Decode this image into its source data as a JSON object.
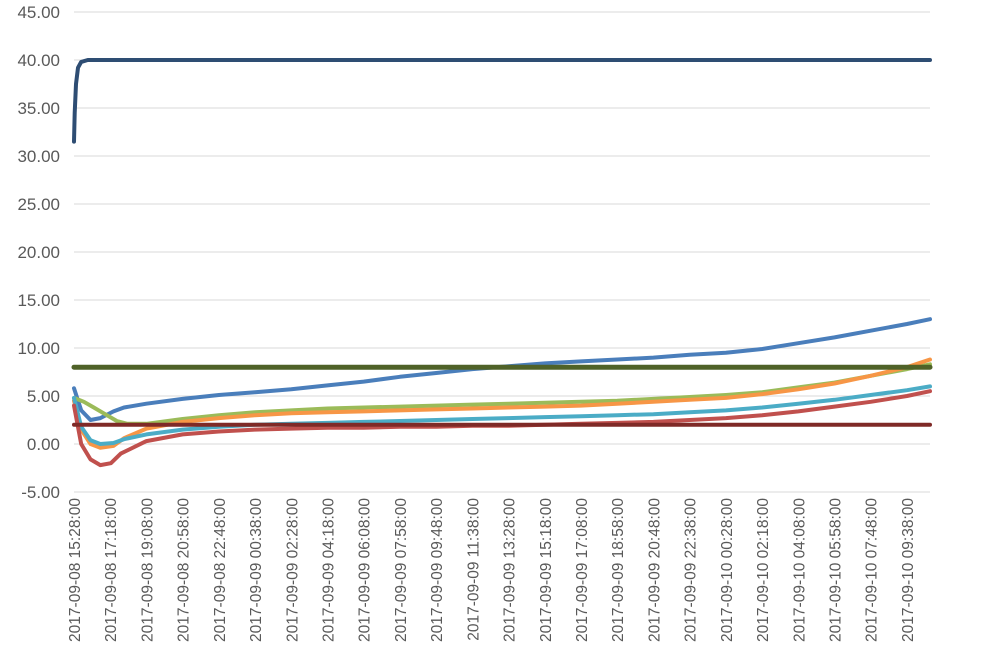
{
  "chart_data": {
    "type": "line",
    "title": "",
    "xlabel": "",
    "ylabel": "",
    "ylim": [
      -5,
      45
    ],
    "yticks": [
      "-5.00",
      "0.00",
      "5.00",
      "10.00",
      "15.00",
      "20.00",
      "25.00",
      "30.00",
      "35.00",
      "40.00",
      "45.00"
    ],
    "grid": true,
    "legend": "none",
    "x_format": "YYYY-MM-DD HH:MM",
    "x_range": [
      "2017-09-08 15:28:00",
      "2017-09-10 10:48:00"
    ],
    "x_ticks": [
      "2017-09-08 15:28:00",
      "2017-09-08 17:18:00",
      "2017-09-08 19:08:00",
      "2017-09-08 20:58:00",
      "2017-09-08 22:48:00",
      "2017-09-09 00:38:00",
      "2017-09-09 02:28:00",
      "2017-09-09 04:18:00",
      "2017-09-09 06:08:00",
      "2017-09-09 07:58:00",
      "2017-09-09 09:48:00",
      "2017-09-09 11:38:00",
      "2017-09-09 13:28:00",
      "2017-09-09 15:18:00",
      "2017-09-09 17:08:00",
      "2017-09-09 18:58:00",
      "2017-09-09 20:48:00",
      "2017-09-09 22:38:00",
      "2017-09-10 00:28:00",
      "2017-09-10 02:18:00",
      "2017-09-10 04:08:00",
      "2017-09-10 05:58:00",
      "2017-09-10 07:48:00",
      "2017-09-10 09:38:00"
    ],
    "series": [
      {
        "color": "#2e4d73",
        "width": 4,
        "points": [
          [
            "2017-09-08 15:28:00",
            31.5
          ],
          [
            "2017-09-08 15:30:00",
            34.5
          ],
          [
            "2017-09-08 15:34:00",
            37.5
          ],
          [
            "2017-09-08 15:40:00",
            39.2
          ],
          [
            "2017-09-08 15:50:00",
            39.8
          ],
          [
            "2017-09-08 16:10:00",
            40.0
          ],
          [
            "2017-09-10 10:48:00",
            40.0
          ]
        ]
      },
      {
        "color": "#4a7ebb",
        "width": 4,
        "points": [
          [
            "2017-09-08 15:28:00",
            5.8
          ],
          [
            "2017-09-08 15:50:00",
            3.5
          ],
          [
            "2017-09-08 16:18:00",
            2.5
          ],
          [
            "2017-09-08 16:48:00",
            2.7
          ],
          [
            "2017-09-08 17:28:00",
            3.4
          ],
          [
            "2017-09-08 18:00:00",
            3.8
          ],
          [
            "2017-09-08 19:08:00",
            4.2
          ],
          [
            "2017-09-08 20:58:00",
            4.7
          ],
          [
            "2017-09-08 22:48:00",
            5.1
          ],
          [
            "2017-09-09 00:38:00",
            5.4
          ],
          [
            "2017-09-09 02:28:00",
            5.7
          ],
          [
            "2017-09-09 04:18:00",
            6.1
          ],
          [
            "2017-09-09 06:08:00",
            6.5
          ],
          [
            "2017-09-09 07:58:00",
            7.0
          ],
          [
            "2017-09-09 09:48:00",
            7.4
          ],
          [
            "2017-09-09 11:38:00",
            7.8
          ],
          [
            "2017-09-09 13:28:00",
            8.1
          ],
          [
            "2017-09-09 15:18:00",
            8.4
          ],
          [
            "2017-09-09 17:08:00",
            8.6
          ],
          [
            "2017-09-09 18:58:00",
            8.8
          ],
          [
            "2017-09-09 20:48:00",
            9.0
          ],
          [
            "2017-09-09 22:38:00",
            9.3
          ],
          [
            "2017-09-10 00:28:00",
            9.5
          ],
          [
            "2017-09-10 02:18:00",
            9.9
          ],
          [
            "2017-09-10 04:08:00",
            10.5
          ],
          [
            "2017-09-10 05:58:00",
            11.1
          ],
          [
            "2017-09-10 07:48:00",
            11.8
          ],
          [
            "2017-09-10 09:38:00",
            12.5
          ],
          [
            "2017-09-10 10:48:00",
            13.0
          ]
        ]
      },
      {
        "color": "#9bbb59",
        "width": 4,
        "points": [
          [
            "2017-09-08 15:28:00",
            4.8
          ],
          [
            "2017-09-08 15:58:00",
            4.4
          ],
          [
            "2017-09-08 16:28:00",
            3.8
          ],
          [
            "2017-09-08 17:08:00",
            3.0
          ],
          [
            "2017-09-08 17:38:00",
            2.4
          ],
          [
            "2017-09-08 18:10:00",
            2.1
          ],
          [
            "2017-09-08 19:08:00",
            2.1
          ],
          [
            "2017-09-08 20:58:00",
            2.6
          ],
          [
            "2017-09-08 22:48:00",
            3.0
          ],
          [
            "2017-09-09 00:38:00",
            3.3
          ],
          [
            "2017-09-09 02:28:00",
            3.5
          ],
          [
            "2017-09-09 04:18:00",
            3.7
          ],
          [
            "2017-09-09 06:08:00",
            3.8
          ],
          [
            "2017-09-09 07:58:00",
            3.9
          ],
          [
            "2017-09-09 09:48:00",
            4.0
          ],
          [
            "2017-09-09 11:38:00",
            4.1
          ],
          [
            "2017-09-09 13:28:00",
            4.2
          ],
          [
            "2017-09-09 15:18:00",
            4.3
          ],
          [
            "2017-09-09 17:08:00",
            4.4
          ],
          [
            "2017-09-09 18:58:00",
            4.5
          ],
          [
            "2017-09-09 20:48:00",
            4.7
          ],
          [
            "2017-09-09 22:38:00",
            4.9
          ],
          [
            "2017-09-10 00:28:00",
            5.1
          ],
          [
            "2017-09-10 02:18:00",
            5.4
          ],
          [
            "2017-09-10 04:08:00",
            5.9
          ],
          [
            "2017-09-10 05:58:00",
            6.4
          ],
          [
            "2017-09-10 07:48:00",
            7.1
          ],
          [
            "2017-09-10 09:38:00",
            7.8
          ],
          [
            "2017-09-10 10:48:00",
            8.3
          ]
        ]
      },
      {
        "color": "#f79646",
        "width": 4,
        "points": [
          [
            "2017-09-08 15:28:00",
            4.5
          ],
          [
            "2017-09-08 15:50:00",
            1.5
          ],
          [
            "2017-09-08 16:18:00",
            0.0
          ],
          [
            "2017-09-08 16:48:00",
            -0.4
          ],
          [
            "2017-09-08 17:28:00",
            -0.2
          ],
          [
            "2017-09-08 18:00:00",
            0.6
          ],
          [
            "2017-09-08 19:08:00",
            1.6
          ],
          [
            "2017-09-08 20:58:00",
            2.3
          ],
          [
            "2017-09-08 22:48:00",
            2.7
          ],
          [
            "2017-09-09 00:38:00",
            3.0
          ],
          [
            "2017-09-09 02:28:00",
            3.2
          ],
          [
            "2017-09-09 04:18:00",
            3.3
          ],
          [
            "2017-09-09 06:08:00",
            3.4
          ],
          [
            "2017-09-09 07:58:00",
            3.5
          ],
          [
            "2017-09-09 09:48:00",
            3.6
          ],
          [
            "2017-09-09 11:38:00",
            3.7
          ],
          [
            "2017-09-09 13:28:00",
            3.8
          ],
          [
            "2017-09-09 15:18:00",
            3.9
          ],
          [
            "2017-09-09 17:08:00",
            4.0
          ],
          [
            "2017-09-09 18:58:00",
            4.2
          ],
          [
            "2017-09-09 20:48:00",
            4.4
          ],
          [
            "2017-09-09 22:38:00",
            4.6
          ],
          [
            "2017-09-10 00:28:00",
            4.8
          ],
          [
            "2017-09-10 02:18:00",
            5.2
          ],
          [
            "2017-09-10 04:08:00",
            5.7
          ],
          [
            "2017-09-10 05:58:00",
            6.3
          ],
          [
            "2017-09-10 07:48:00",
            7.1
          ],
          [
            "2017-09-10 09:38:00",
            8.0
          ],
          [
            "2017-09-10 10:48:00",
            8.8
          ]
        ]
      },
      {
        "color": "#4bacc6",
        "width": 4,
        "points": [
          [
            "2017-09-08 15:28:00",
            4.8
          ],
          [
            "2017-09-08 15:50:00",
            1.8
          ],
          [
            "2017-09-08 16:18:00",
            0.4
          ],
          [
            "2017-09-08 16:48:00",
            0.0
          ],
          [
            "2017-09-08 17:28:00",
            0.1
          ],
          [
            "2017-09-08 18:00:00",
            0.5
          ],
          [
            "2017-09-08 19:08:00",
            1.0
          ],
          [
            "2017-09-08 20:58:00",
            1.5
          ],
          [
            "2017-09-08 22:48:00",
            1.8
          ],
          [
            "2017-09-09 00:38:00",
            2.0
          ],
          [
            "2017-09-09 02:28:00",
            2.1
          ],
          [
            "2017-09-09 04:18:00",
            2.2
          ],
          [
            "2017-09-09 06:08:00",
            2.3
          ],
          [
            "2017-09-09 07:58:00",
            2.4
          ],
          [
            "2017-09-09 09:48:00",
            2.5
          ],
          [
            "2017-09-09 11:38:00",
            2.6
          ],
          [
            "2017-09-09 13:28:00",
            2.7
          ],
          [
            "2017-09-09 15:18:00",
            2.8
          ],
          [
            "2017-09-09 17:08:00",
            2.9
          ],
          [
            "2017-09-09 18:58:00",
            3.0
          ],
          [
            "2017-09-09 20:48:00",
            3.1
          ],
          [
            "2017-09-09 22:38:00",
            3.3
          ],
          [
            "2017-09-10 00:28:00",
            3.5
          ],
          [
            "2017-09-10 02:18:00",
            3.8
          ],
          [
            "2017-09-10 04:08:00",
            4.2
          ],
          [
            "2017-09-10 05:58:00",
            4.6
          ],
          [
            "2017-09-10 07:48:00",
            5.1
          ],
          [
            "2017-09-10 09:38:00",
            5.6
          ],
          [
            "2017-09-10 10:48:00",
            6.0
          ]
        ]
      },
      {
        "color": "#c0504d",
        "width": 4,
        "points": [
          [
            "2017-09-08 15:28:00",
            4.0
          ],
          [
            "2017-09-08 15:50:00",
            0.0
          ],
          [
            "2017-09-08 16:18:00",
            -1.6
          ],
          [
            "2017-09-08 16:48:00",
            -2.2
          ],
          [
            "2017-09-08 17:20:00",
            -2.0
          ],
          [
            "2017-09-08 17:50:00",
            -1.0
          ],
          [
            "2017-09-08 19:08:00",
            0.3
          ],
          [
            "2017-09-08 20:58:00",
            1.0
          ],
          [
            "2017-09-08 22:48:00",
            1.3
          ],
          [
            "2017-09-09 00:38:00",
            1.5
          ],
          [
            "2017-09-09 02:28:00",
            1.6
          ],
          [
            "2017-09-09 04:18:00",
            1.7
          ],
          [
            "2017-09-09 06:08:00",
            1.7
          ],
          [
            "2017-09-09 07:58:00",
            1.8
          ],
          [
            "2017-09-09 09:48:00",
            1.8
          ],
          [
            "2017-09-09 11:38:00",
            1.9
          ],
          [
            "2017-09-09 13:28:00",
            1.9
          ],
          [
            "2017-09-09 15:18:00",
            2.0
          ],
          [
            "2017-09-09 17:08:00",
            2.1
          ],
          [
            "2017-09-09 18:58:00",
            2.2
          ],
          [
            "2017-09-09 20:48:00",
            2.3
          ],
          [
            "2017-09-09 22:38:00",
            2.5
          ],
          [
            "2017-09-10 00:28:00",
            2.7
          ],
          [
            "2017-09-10 02:18:00",
            3.0
          ],
          [
            "2017-09-10 04:08:00",
            3.4
          ],
          [
            "2017-09-10 05:58:00",
            3.9
          ],
          [
            "2017-09-10 07:48:00",
            4.4
          ],
          [
            "2017-09-10 09:38:00",
            5.0
          ],
          [
            "2017-09-10 10:48:00",
            5.5
          ]
        ]
      },
      {
        "color": "#4f6228",
        "width": 5,
        "points": [
          [
            "2017-09-08 15:28:00",
            8.0
          ],
          [
            "2017-09-10 10:48:00",
            8.0
          ]
        ]
      },
      {
        "color": "#7f2a27",
        "width": 4,
        "points": [
          [
            "2017-09-08 15:28:00",
            2.0
          ],
          [
            "2017-09-10 10:48:00",
            2.0
          ]
        ]
      }
    ]
  }
}
